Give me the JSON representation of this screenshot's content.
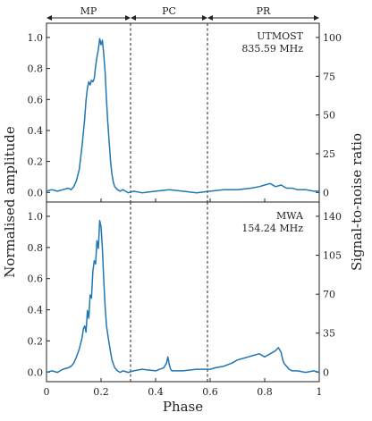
{
  "chart_data": {
    "type": "line",
    "xlabel": "Phase",
    "ylabel_left": "Normalised amplitude",
    "ylabel_right": "Signal-to-noise ratio",
    "xlim": [
      0,
      1
    ],
    "xticks": [
      "0",
      "0.2",
      "0.4",
      "0.6",
      "0.8",
      "1"
    ],
    "line_color": "#1f77b4",
    "phase_regions": [
      {
        "label": "MP",
        "start": 0.0,
        "end": 0.31
      },
      {
        "label": "PC",
        "start": 0.31,
        "end": 0.59
      },
      {
        "label": "PR",
        "start": 0.59,
        "end": 1.0
      }
    ],
    "region_boundaries": [
      0.31,
      0.59
    ],
    "panels": [
      {
        "id": "utmost",
        "annotation": [
          "UTMOST",
          "835.59 MHz"
        ],
        "ylim": [
          -0.06,
          1.1
        ],
        "yticks_left": [
          "0.0",
          "0.2",
          "0.4",
          "0.6",
          "0.8",
          "1.0"
        ],
        "yticks_right": [
          "0",
          "25",
          "50",
          "75",
          "100"
        ],
        "snr_per_unit_amplitude": 100,
        "x": [
          0.0,
          0.02,
          0.04,
          0.06,
          0.08,
          0.09,
          0.1,
          0.11,
          0.12,
          0.13,
          0.14,
          0.145,
          0.15,
          0.155,
          0.16,
          0.165,
          0.17,
          0.175,
          0.18,
          0.185,
          0.19,
          0.195,
          0.2,
          0.205,
          0.21,
          0.215,
          0.22,
          0.225,
          0.23,
          0.235,
          0.24,
          0.245,
          0.25,
          0.26,
          0.27,
          0.28,
          0.29,
          0.3,
          0.32,
          0.35,
          0.4,
          0.45,
          0.5,
          0.55,
          0.6,
          0.65,
          0.7,
          0.75,
          0.78,
          0.8,
          0.82,
          0.84,
          0.86,
          0.88,
          0.9,
          0.92,
          0.95,
          0.98,
          1.0
        ],
        "y": [
          0.01,
          0.02,
          0.01,
          0.02,
          0.03,
          0.02,
          0.04,
          0.08,
          0.15,
          0.3,
          0.48,
          0.6,
          0.68,
          0.72,
          0.7,
          0.73,
          0.72,
          0.74,
          0.82,
          0.88,
          0.93,
          1.0,
          0.96,
          0.99,
          0.9,
          0.78,
          0.6,
          0.45,
          0.32,
          0.2,
          0.12,
          0.07,
          0.04,
          0.02,
          0.01,
          0.02,
          0.01,
          0.0,
          0.01,
          0.0,
          0.01,
          0.02,
          0.01,
          0.0,
          0.01,
          0.02,
          0.02,
          0.03,
          0.04,
          0.05,
          0.06,
          0.04,
          0.05,
          0.03,
          0.03,
          0.02,
          0.02,
          0.01,
          0.01
        ]
      },
      {
        "id": "mwa",
        "annotation": [
          "MWA",
          "154.24 MHz"
        ],
        "ylim": [
          -0.06,
          1.1
        ],
        "yticks_left": [
          "0.0",
          "0.2",
          "0.4",
          "0.6",
          "0.8",
          "1.0"
        ],
        "yticks_right": [
          "0",
          "35",
          "70",
          "105",
          "140"
        ],
        "snr_per_unit_amplitude": 140,
        "x": [
          0.0,
          0.02,
          0.04,
          0.06,
          0.08,
          0.09,
          0.1,
          0.11,
          0.12,
          0.13,
          0.135,
          0.14,
          0.145,
          0.15,
          0.155,
          0.16,
          0.165,
          0.17,
          0.175,
          0.18,
          0.185,
          0.19,
          0.195,
          0.2,
          0.205,
          0.21,
          0.215,
          0.22,
          0.23,
          0.24,
          0.25,
          0.26,
          0.27,
          0.28,
          0.3,
          0.32,
          0.35,
          0.4,
          0.43,
          0.44,
          0.445,
          0.45,
          0.455,
          0.46,
          0.48,
          0.5,
          0.55,
          0.6,
          0.62,
          0.65,
          0.68,
          0.7,
          0.72,
          0.74,
          0.76,
          0.78,
          0.8,
          0.82,
          0.84,
          0.85,
          0.86,
          0.865,
          0.87,
          0.88,
          0.89,
          0.9,
          0.92,
          0.95,
          0.98,
          1.0
        ],
        "y": [
          0.0,
          0.01,
          0.0,
          0.02,
          0.03,
          0.04,
          0.06,
          0.1,
          0.15,
          0.22,
          0.28,
          0.3,
          0.26,
          0.4,
          0.35,
          0.5,
          0.48,
          0.65,
          0.72,
          0.7,
          0.85,
          0.8,
          0.98,
          0.94,
          0.8,
          0.6,
          0.42,
          0.3,
          0.18,
          0.08,
          0.03,
          0.01,
          0.0,
          0.01,
          0.0,
          0.01,
          0.02,
          0.01,
          0.03,
          0.06,
          0.1,
          0.05,
          0.02,
          0.01,
          0.01,
          0.01,
          0.02,
          0.02,
          0.03,
          0.04,
          0.06,
          0.08,
          0.09,
          0.1,
          0.11,
          0.12,
          0.1,
          0.12,
          0.14,
          0.16,
          0.13,
          0.09,
          0.06,
          0.04,
          0.02,
          0.01,
          0.01,
          0.0,
          0.01,
          0.0
        ]
      }
    ]
  }
}
